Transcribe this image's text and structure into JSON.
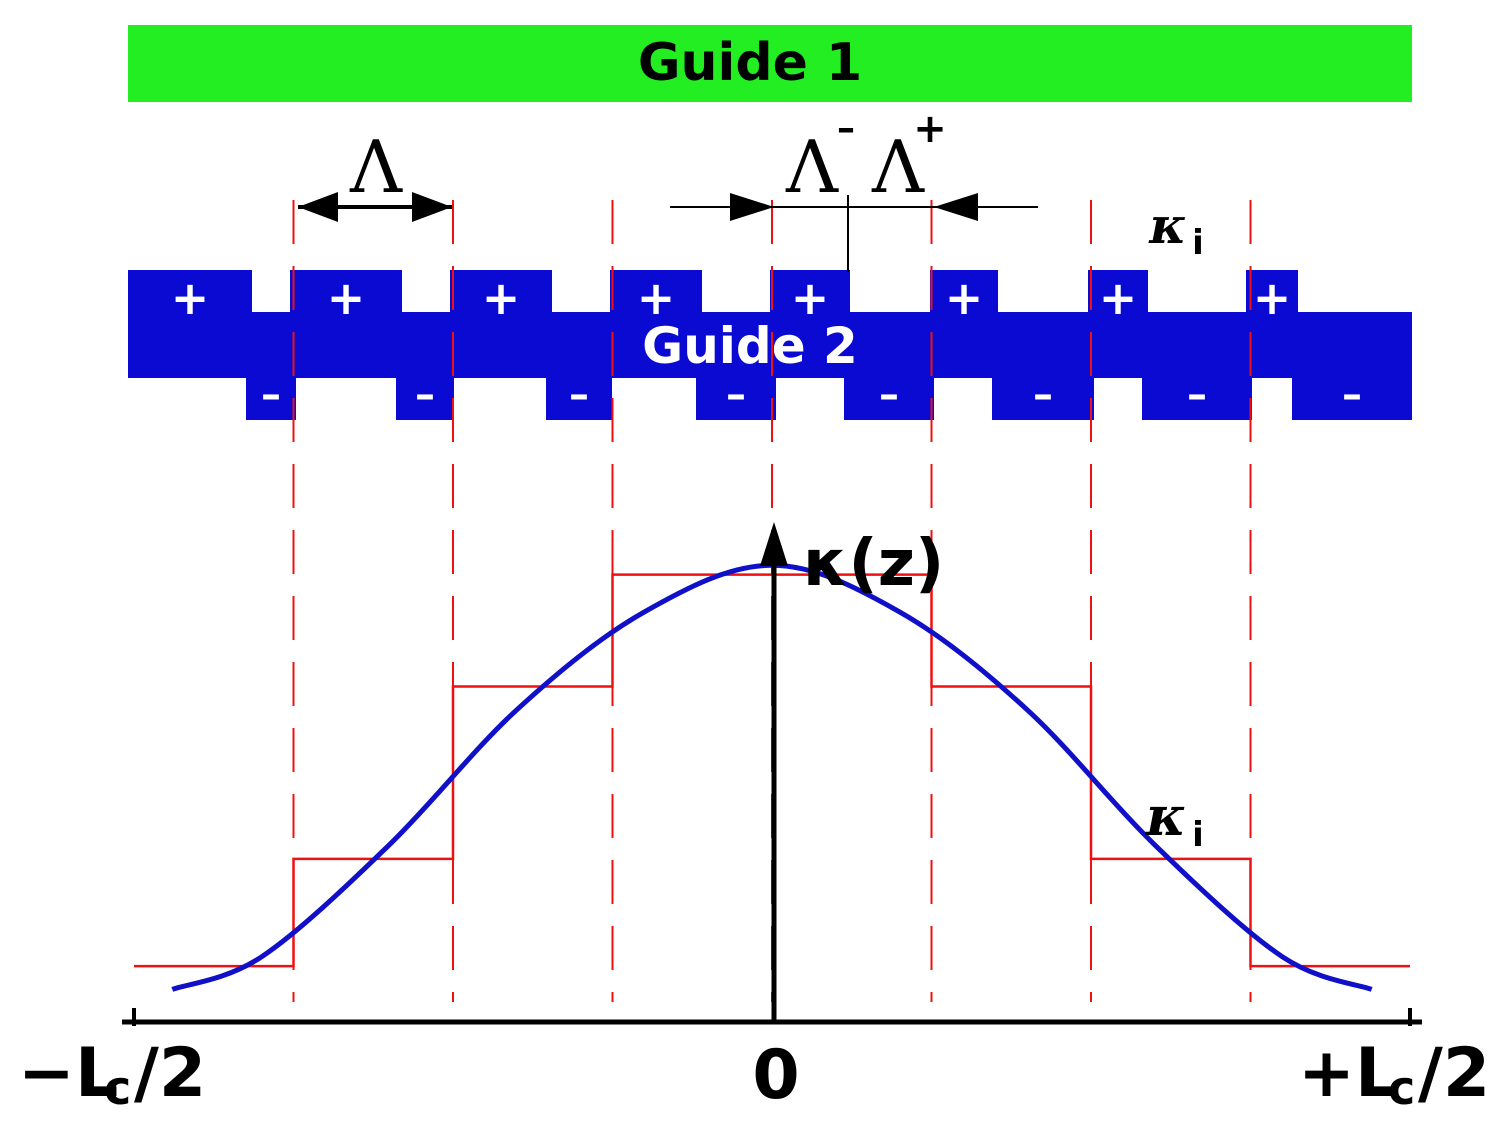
{
  "guide1": {
    "label": "Guide 1",
    "color": "#22ee22"
  },
  "guide2": {
    "label": "Guide 2",
    "color": "#0a0ad2",
    "plus_sign": "+",
    "minus_sign": "–",
    "segment_count": 8
  },
  "period": {
    "label": "Λ"
  },
  "period_minus": {
    "label": "Λ",
    "superscript": "–"
  },
  "period_plus": {
    "label": "Λ",
    "superscript": "+"
  },
  "kappa_i_top": {
    "symbol": "κ",
    "subscript": "i"
  },
  "kappa_i_plot": {
    "symbol": "κ",
    "subscript": "i"
  },
  "colors": {
    "grid": "#ee1111",
    "curve": "#1010c8",
    "step": "#ee1111",
    "axis": "#000000"
  },
  "chart_data": {
    "type": "line",
    "ylabel": "κ(z)",
    "x_tick_labels": {
      "left": "−L",
      "left_sub": "c",
      "left_tail": "/2",
      "center": "0",
      "right": "+L",
      "right_sub": "c",
      "right_tail": "/2"
    },
    "xlim": [
      -0.5,
      0.5
    ],
    "ylim": [
      0,
      1
    ],
    "series": [
      {
        "kind": "smooth",
        "x": [
          -0.47,
          -0.4,
          -0.3,
          -0.2,
          -0.1,
          0,
          0.1,
          0.2,
          0.3,
          0.4,
          0.47
        ],
        "values": [
          0.07,
          0.14,
          0.38,
          0.67,
          0.88,
          0.98,
          0.88,
          0.67,
          0.38,
          0.14,
          0.07
        ]
      },
      {
        "kind": "step",
        "edges": [
          -0.5,
          -0.375,
          -0.25,
          -0.125,
          0,
          0.125,
          0.25,
          0.375,
          0.5
        ],
        "values": [
          0.12,
          0.35,
          0.72,
          0.96,
          0.96,
          0.72,
          0.35,
          0.12
        ]
      }
    ]
  }
}
